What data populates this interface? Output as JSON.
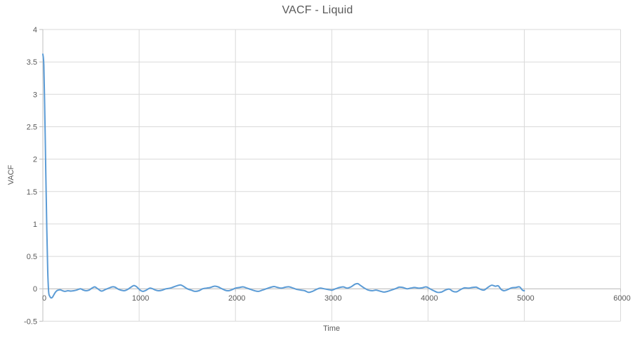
{
  "chart": {
    "title": "VACF - Liquid",
    "x_axis_title": "Time",
    "y_axis_title": "VACF",
    "colors": {
      "series_line": "#5B9BD5",
      "gridline": "#D9D9D9",
      "axis_line": "#BFBFBF",
      "tick_text": "#595959",
      "title_text": "#595959",
      "background": "#FFFFFF"
    }
  },
  "chart_data": {
    "type": "line",
    "title": "VACF - Liquid",
    "xlabel": "Time",
    "ylabel": "VACF",
    "xlim": [
      0,
      6000
    ],
    "ylim": [
      -0.5,
      4
    ],
    "grid": true,
    "legend": false,
    "x_ticks": [
      0,
      1000,
      2000,
      3000,
      4000,
      5000,
      6000
    ],
    "x_tick_labels": [
      "0",
      "1000",
      "2000",
      "3000",
      "4000",
      "5000",
      "6000"
    ],
    "y_ticks": [
      -0.5,
      0,
      0.5,
      1,
      1.5,
      2,
      2.5,
      3,
      3.5,
      4
    ],
    "y_tick_labels": [
      "-0.5",
      "0",
      "0.5",
      "1",
      "1.5",
      "2",
      "2.5",
      "3",
      "3.5",
      "4"
    ],
    "x_axis_cross_value": 0,
    "series": [
      {
        "name": "VACF",
        "color": "#5B9BD5",
        "points": [
          [
            0,
            3.62
          ],
          [
            10,
            3.45
          ],
          [
            20,
            2.75
          ],
          [
            30,
            1.85
          ],
          [
            40,
            1.0
          ],
          [
            50,
            0.3
          ],
          [
            60,
            -0.04
          ],
          [
            70,
            -0.11
          ],
          [
            85,
            -0.14
          ],
          [
            100,
            -0.13
          ],
          [
            115,
            -0.09
          ],
          [
            130,
            -0.055
          ],
          [
            145,
            -0.03
          ],
          [
            160,
            -0.02
          ],
          [
            180,
            -0.015
          ],
          [
            205,
            -0.03
          ],
          [
            230,
            -0.04
          ],
          [
            260,
            -0.03
          ],
          [
            290,
            -0.035
          ],
          [
            320,
            -0.03
          ],
          [
            350,
            -0.02
          ],
          [
            390,
            0
          ],
          [
            420,
            -0.02
          ],
          [
            450,
            -0.03
          ],
          [
            480,
            -0.02
          ],
          [
            510,
            0.01
          ],
          [
            540,
            0.03
          ],
          [
            570,
            0
          ],
          [
            610,
            -0.035
          ],
          [
            650,
            -0.01
          ],
          [
            685,
            0.01
          ],
          [
            720,
            0.03
          ],
          [
            750,
            0.025
          ],
          [
            790,
            -0.01
          ],
          [
            845,
            -0.03
          ],
          [
            880,
            -0.01
          ],
          [
            910,
            0.02
          ],
          [
            945,
            0.05
          ],
          [
            975,
            0.03
          ],
          [
            1010,
            -0.02
          ],
          [
            1040,
            -0.04
          ],
          [
            1075,
            -0.02
          ],
          [
            1110,
            0.01
          ],
          [
            1140,
            0
          ],
          [
            1170,
            -0.02
          ],
          [
            1200,
            -0.03
          ],
          [
            1240,
            -0.02
          ],
          [
            1280,
            0
          ],
          [
            1320,
            0.01
          ],
          [
            1360,
            0.03
          ],
          [
            1400,
            0.05
          ],
          [
            1430,
            0.06
          ],
          [
            1460,
            0.04
          ],
          [
            1500,
            0
          ],
          [
            1540,
            -0.02
          ],
          [
            1580,
            -0.04
          ],
          [
            1620,
            -0.03
          ],
          [
            1660,
            0
          ],
          [
            1700,
            0.01
          ],
          [
            1740,
            0.02
          ],
          [
            1780,
            0.04
          ],
          [
            1820,
            0.03
          ],
          [
            1860,
            0
          ],
          [
            1900,
            -0.025
          ],
          [
            1930,
            -0.03
          ],
          [
            1970,
            -0.01
          ],
          [
            2000,
            0.01
          ],
          [
            2040,
            0.02
          ],
          [
            2080,
            0.03
          ],
          [
            2120,
            0.01
          ],
          [
            2160,
            -0.01
          ],
          [
            2200,
            -0.03
          ],
          [
            2240,
            -0.04
          ],
          [
            2280,
            -0.02
          ],
          [
            2320,
            0
          ],
          [
            2360,
            0.02
          ],
          [
            2400,
            0.035
          ],
          [
            2440,
            0.02
          ],
          [
            2480,
            0.01
          ],
          [
            2520,
            0.025
          ],
          [
            2560,
            0.03
          ],
          [
            2600,
            0.01
          ],
          [
            2640,
            -0.01
          ],
          [
            2680,
            -0.02
          ],
          [
            2720,
            -0.03
          ],
          [
            2760,
            -0.055
          ],
          [
            2800,
            -0.04
          ],
          [
            2840,
            -0.01
          ],
          [
            2880,
            0.01
          ],
          [
            2920,
            0
          ],
          [
            2960,
            -0.01
          ],
          [
            3000,
            -0.02
          ],
          [
            3040,
            0
          ],
          [
            3080,
            0.02
          ],
          [
            3120,
            0.03
          ],
          [
            3160,
            0.01
          ],
          [
            3200,
            0.03
          ],
          [
            3240,
            0.07
          ],
          [
            3270,
            0.08
          ],
          [
            3300,
            0.05
          ],
          [
            3340,
            0.01
          ],
          [
            3380,
            -0.02
          ],
          [
            3420,
            -0.03
          ],
          [
            3460,
            -0.02
          ],
          [
            3500,
            -0.035
          ],
          [
            3540,
            -0.05
          ],
          [
            3580,
            -0.04
          ],
          [
            3620,
            -0.02
          ],
          [
            3660,
            0
          ],
          [
            3700,
            0.025
          ],
          [
            3740,
            0.02
          ],
          [
            3780,
            0
          ],
          [
            3820,
            0.01
          ],
          [
            3860,
            0.02
          ],
          [
            3900,
            0.01
          ],
          [
            3940,
            0.015
          ],
          [
            3980,
            0.03
          ],
          [
            4020,
            0
          ],
          [
            4060,
            -0.03
          ],
          [
            4100,
            -0.055
          ],
          [
            4140,
            -0.05
          ],
          [
            4180,
            -0.02
          ],
          [
            4220,
            -0.005
          ],
          [
            4260,
            -0.04
          ],
          [
            4300,
            -0.045
          ],
          [
            4340,
            -0.01
          ],
          [
            4380,
            0.015
          ],
          [
            4420,
            0.01
          ],
          [
            4460,
            0.02
          ],
          [
            4500,
            0.025
          ],
          [
            4540,
            -0.005
          ],
          [
            4580,
            -0.02
          ],
          [
            4620,
            0.02
          ],
          [
            4660,
            0.055
          ],
          [
            4700,
            0.04
          ],
          [
            4730,
            0.045
          ],
          [
            4760,
            -0.01
          ],
          [
            4790,
            -0.03
          ],
          [
            4830,
            -0.01
          ],
          [
            4870,
            0.015
          ],
          [
            4910,
            0.02
          ],
          [
            4950,
            0.03
          ],
          [
            4980,
            -0.02
          ],
          [
            5000,
            -0.03
          ]
        ]
      }
    ]
  }
}
